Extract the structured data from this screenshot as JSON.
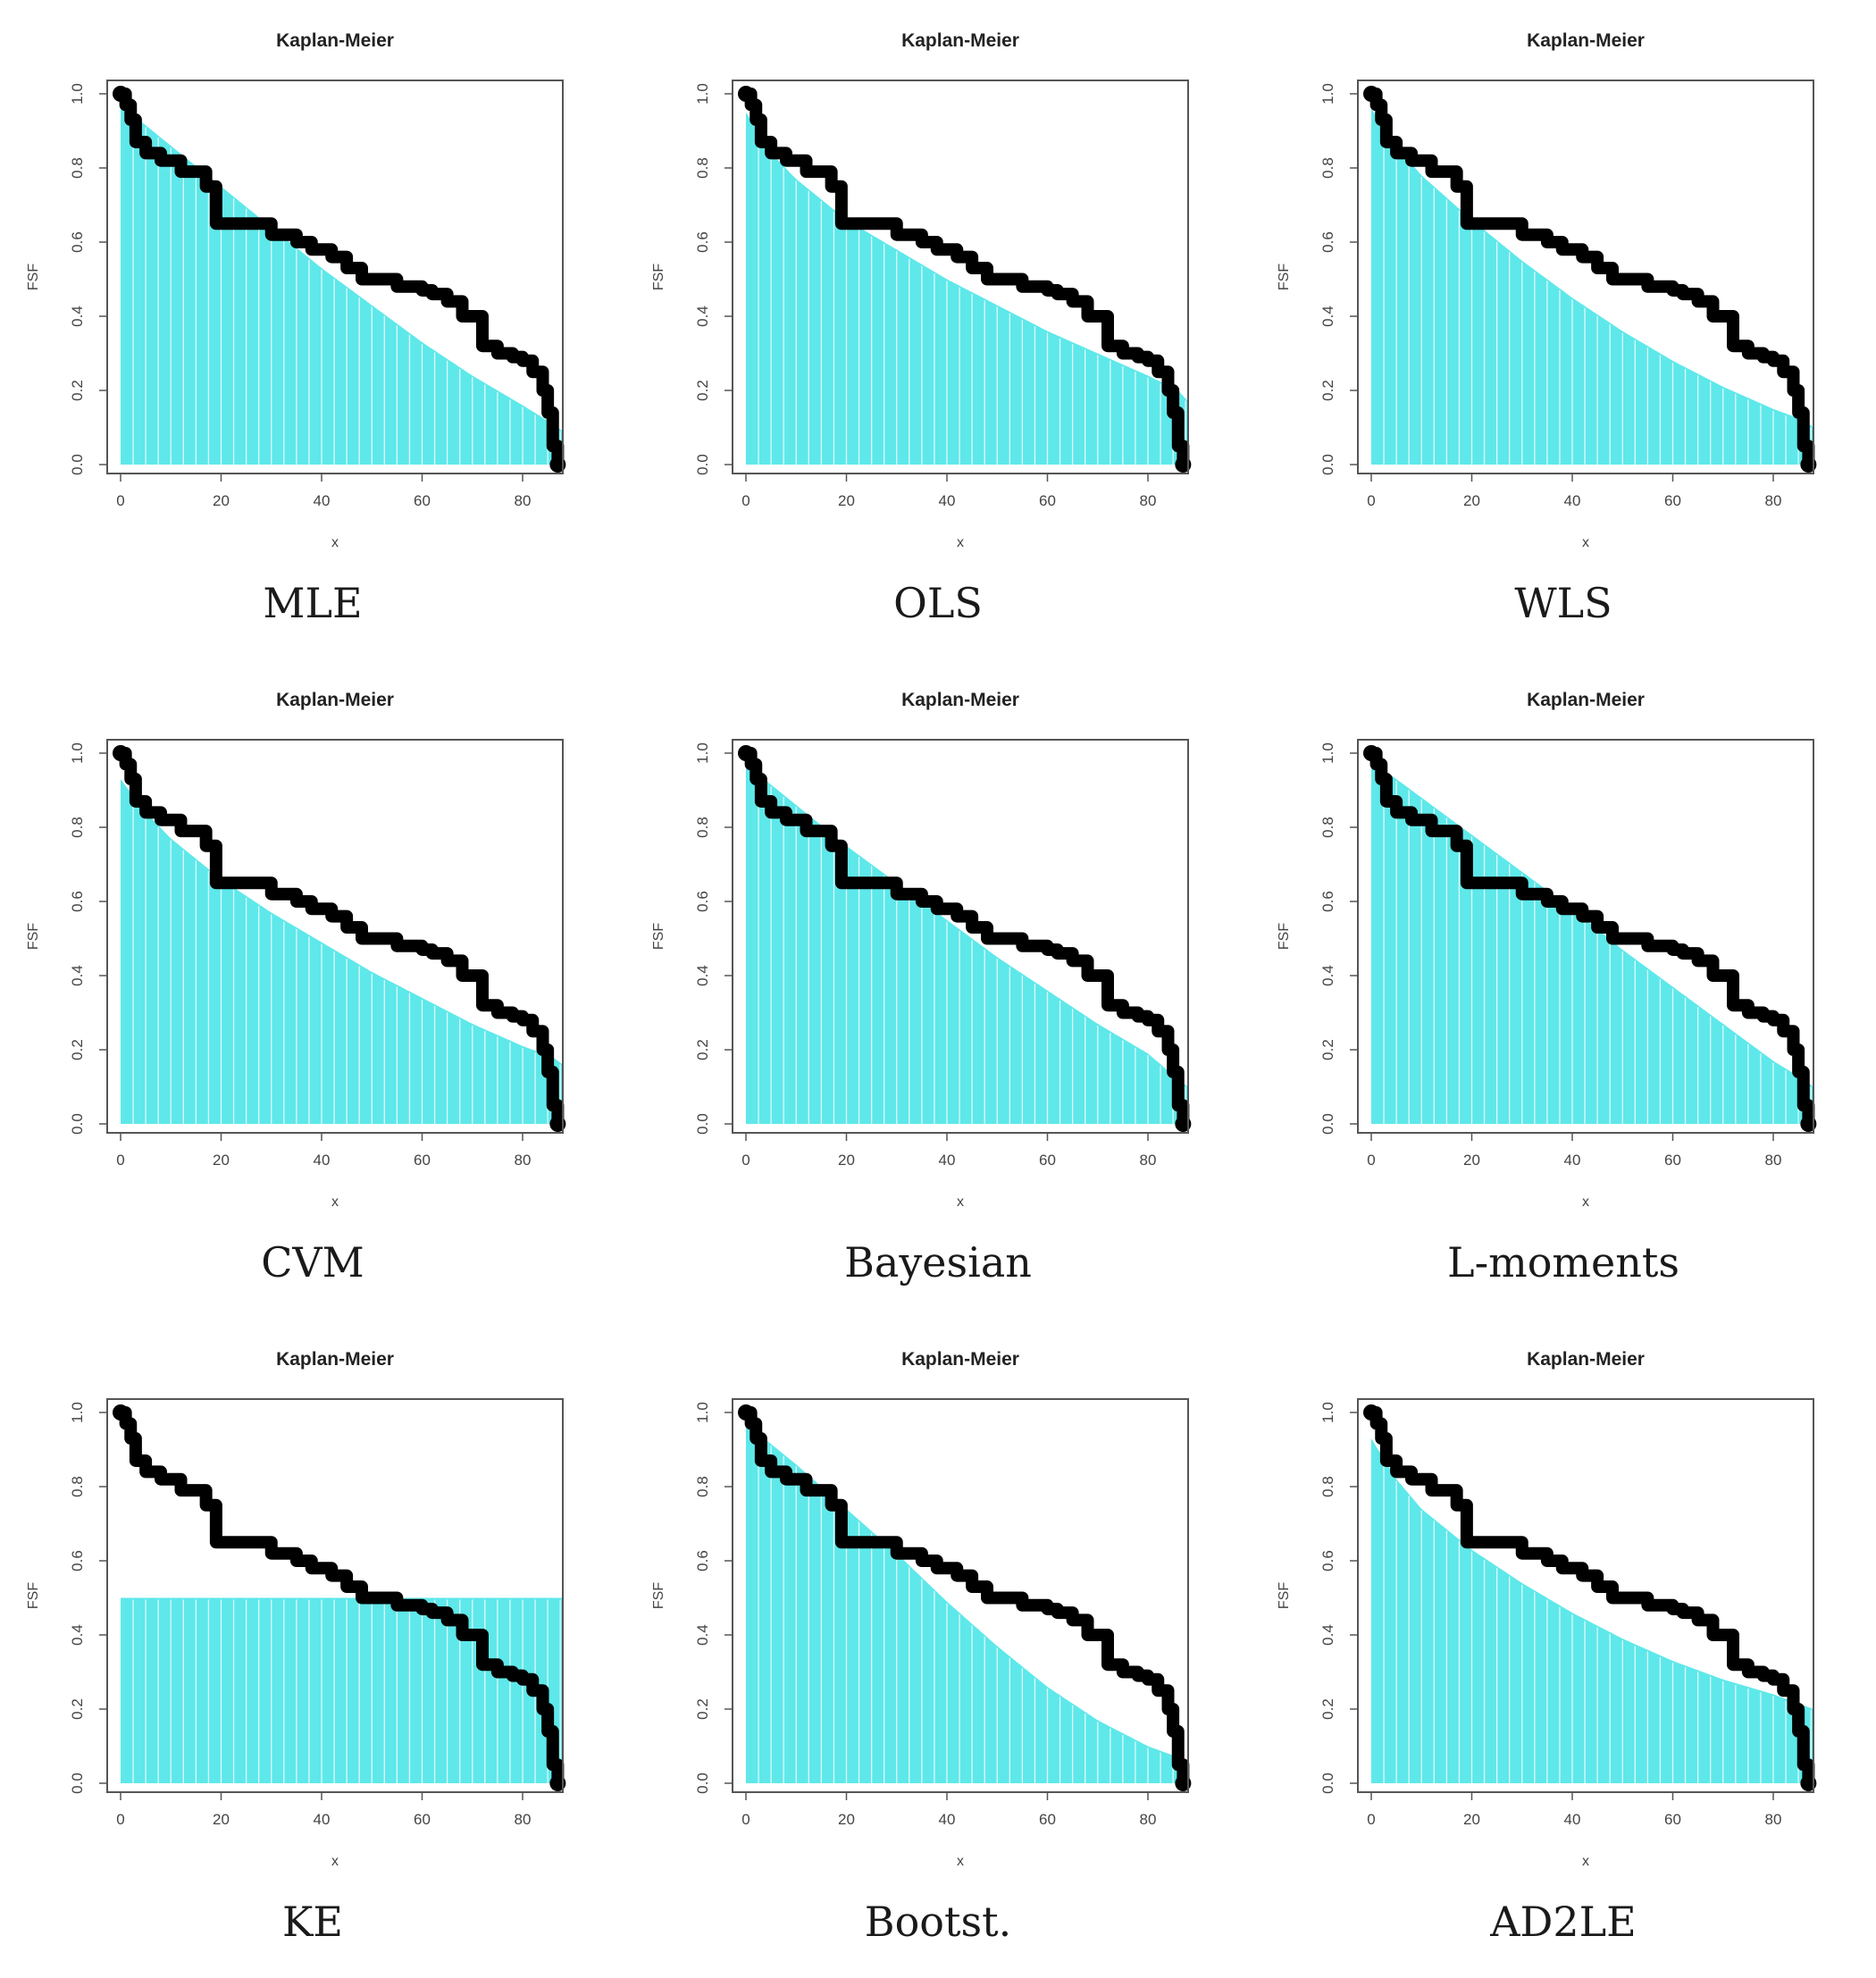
{
  "figure": {
    "panel_title": "Kaplan-Meier",
    "xlabel": "x",
    "ylabel": "FSF",
    "colors": {
      "fitted_fill": "#5ee8ea",
      "fitted_stripe": "#ffffff",
      "km_curve": "#000000",
      "frame": "#555555"
    }
  },
  "chart_data": [
    {
      "type": "area",
      "caption": "MLE",
      "title": "Kaplan-Meier",
      "xlabel": "x",
      "ylabel": "FSF",
      "xlim": [
        0,
        88
      ],
      "ylim": [
        0,
        1
      ],
      "xticks": [
        0,
        20,
        40,
        60,
        80
      ],
      "yticks": [
        0.0,
        0.2,
        0.4,
        0.6,
        0.8,
        1.0
      ],
      "series": [
        {
          "kind": "fitted_survival",
          "x": [
            0,
            10,
            20,
            30,
            40,
            50,
            60,
            70,
            80,
            86,
            88
          ],
          "y": [
            0.97,
            0.86,
            0.75,
            0.64,
            0.53,
            0.43,
            0.33,
            0.24,
            0.16,
            0.11,
            0.09
          ]
        },
        {
          "kind": "kaplan_meier",
          "x": [
            0,
            1,
            2,
            3,
            5,
            8,
            12,
            17,
            19,
            30,
            35,
            38,
            42,
            45,
            48,
            55,
            60,
            62,
            65,
            68,
            72,
            75,
            78,
            80,
            82,
            84,
            85,
            86,
            87
          ],
          "y": [
            1.0,
            0.97,
            0.93,
            0.87,
            0.84,
            0.82,
            0.79,
            0.75,
            0.65,
            0.62,
            0.6,
            0.58,
            0.56,
            0.53,
            0.5,
            0.48,
            0.47,
            0.46,
            0.44,
            0.4,
            0.32,
            0.3,
            0.29,
            0.28,
            0.25,
            0.2,
            0.14,
            0.05,
            0.0
          ]
        }
      ]
    },
    {
      "type": "area",
      "caption": "OLS",
      "title": "Kaplan-Meier",
      "xlabel": "x",
      "ylabel": "FSF",
      "xlim": [
        0,
        88
      ],
      "ylim": [
        0,
        1
      ],
      "xticks": [
        0,
        20,
        40,
        60,
        80
      ],
      "yticks": [
        0.0,
        0.2,
        0.4,
        0.6,
        0.8,
        1.0
      ],
      "series": [
        {
          "kind": "fitted_survival",
          "x": [
            0,
            5,
            10,
            20,
            30,
            40,
            50,
            60,
            70,
            80,
            86,
            88
          ],
          "y": [
            0.95,
            0.84,
            0.77,
            0.66,
            0.58,
            0.5,
            0.43,
            0.36,
            0.3,
            0.24,
            0.2,
            0.17
          ]
        },
        {
          "kind": "kaplan_meier",
          "x": [
            0,
            1,
            2,
            3,
            5,
            8,
            12,
            17,
            19,
            30,
            35,
            38,
            42,
            45,
            48,
            55,
            60,
            62,
            65,
            68,
            72,
            75,
            78,
            80,
            82,
            84,
            85,
            86,
            87
          ],
          "y": [
            1.0,
            0.97,
            0.93,
            0.87,
            0.84,
            0.82,
            0.79,
            0.75,
            0.65,
            0.62,
            0.6,
            0.58,
            0.56,
            0.53,
            0.5,
            0.48,
            0.47,
            0.46,
            0.44,
            0.4,
            0.32,
            0.3,
            0.29,
            0.28,
            0.25,
            0.2,
            0.14,
            0.05,
            0.0
          ]
        }
      ]
    },
    {
      "type": "area",
      "caption": "WLS",
      "title": "Kaplan-Meier",
      "xlabel": "x",
      "ylabel": "FSF",
      "xlim": [
        0,
        88
      ],
      "ylim": [
        0,
        1
      ],
      "xticks": [
        0,
        20,
        40,
        60,
        80
      ],
      "yticks": [
        0.0,
        0.2,
        0.4,
        0.6,
        0.8,
        1.0
      ],
      "series": [
        {
          "kind": "fitted_survival",
          "x": [
            0,
            5,
            10,
            20,
            30,
            40,
            50,
            60,
            70,
            80,
            86,
            88
          ],
          "y": [
            0.96,
            0.86,
            0.78,
            0.66,
            0.55,
            0.45,
            0.36,
            0.28,
            0.21,
            0.15,
            0.12,
            0.1
          ]
        },
        {
          "kind": "kaplan_meier",
          "x": [
            0,
            1,
            2,
            3,
            5,
            8,
            12,
            17,
            19,
            30,
            35,
            38,
            42,
            45,
            48,
            55,
            60,
            62,
            65,
            68,
            72,
            75,
            78,
            80,
            82,
            84,
            85,
            86,
            87
          ],
          "y": [
            1.0,
            0.97,
            0.93,
            0.87,
            0.84,
            0.82,
            0.79,
            0.75,
            0.65,
            0.62,
            0.6,
            0.58,
            0.56,
            0.53,
            0.5,
            0.48,
            0.47,
            0.46,
            0.44,
            0.4,
            0.32,
            0.3,
            0.29,
            0.28,
            0.25,
            0.2,
            0.14,
            0.05,
            0.0
          ]
        }
      ]
    },
    {
      "type": "area",
      "caption": "CVM",
      "title": "Kaplan-Meier",
      "xlabel": "x",
      "ylabel": "FSF",
      "xlim": [
        0,
        88
      ],
      "ylim": [
        0,
        1
      ],
      "xticks": [
        0,
        20,
        40,
        60,
        80
      ],
      "yticks": [
        0.0,
        0.2,
        0.4,
        0.6,
        0.8,
        1.0
      ],
      "series": [
        {
          "kind": "fitted_survival",
          "x": [
            0,
            5,
            10,
            20,
            30,
            40,
            50,
            60,
            70,
            80,
            86,
            88
          ],
          "y": [
            0.93,
            0.84,
            0.77,
            0.66,
            0.57,
            0.49,
            0.41,
            0.34,
            0.27,
            0.21,
            0.18,
            0.16
          ]
        },
        {
          "kind": "kaplan_meier",
          "x": [
            0,
            1,
            2,
            3,
            5,
            8,
            12,
            17,
            19,
            30,
            35,
            38,
            42,
            45,
            48,
            55,
            60,
            62,
            65,
            68,
            72,
            75,
            78,
            80,
            82,
            84,
            85,
            86,
            87
          ],
          "y": [
            1.0,
            0.97,
            0.93,
            0.87,
            0.84,
            0.82,
            0.79,
            0.75,
            0.65,
            0.62,
            0.6,
            0.58,
            0.56,
            0.53,
            0.5,
            0.48,
            0.47,
            0.46,
            0.44,
            0.4,
            0.32,
            0.3,
            0.29,
            0.28,
            0.25,
            0.2,
            0.14,
            0.05,
            0.0
          ]
        }
      ]
    },
    {
      "type": "area",
      "caption": "Bayesian",
      "title": "Kaplan-Meier",
      "xlabel": "x",
      "ylabel": "FSF",
      "xlim": [
        0,
        88
      ],
      "ylim": [
        0,
        1
      ],
      "xticks": [
        0,
        20,
        40,
        60,
        80
      ],
      "yticks": [
        0.0,
        0.2,
        0.4,
        0.6,
        0.8,
        1.0
      ],
      "series": [
        {
          "kind": "fitted_survival",
          "x": [
            0,
            10,
            20,
            30,
            40,
            50,
            60,
            70,
            80,
            86,
            88
          ],
          "y": [
            0.97,
            0.86,
            0.75,
            0.65,
            0.55,
            0.45,
            0.36,
            0.27,
            0.19,
            0.12,
            0.1
          ]
        },
        {
          "kind": "kaplan_meier",
          "x": [
            0,
            1,
            2,
            3,
            5,
            8,
            12,
            17,
            19,
            30,
            35,
            38,
            42,
            45,
            48,
            55,
            60,
            62,
            65,
            68,
            72,
            75,
            78,
            80,
            82,
            84,
            85,
            86,
            87
          ],
          "y": [
            1.0,
            0.97,
            0.93,
            0.87,
            0.84,
            0.82,
            0.79,
            0.75,
            0.65,
            0.62,
            0.6,
            0.58,
            0.56,
            0.53,
            0.5,
            0.48,
            0.47,
            0.46,
            0.44,
            0.4,
            0.32,
            0.3,
            0.29,
            0.28,
            0.25,
            0.2,
            0.14,
            0.05,
            0.0
          ]
        }
      ]
    },
    {
      "type": "area",
      "caption": "L-moments",
      "title": "Kaplan-Meier",
      "xlabel": "x",
      "ylabel": "FSF",
      "xlim": [
        0,
        88
      ],
      "ylim": [
        0,
        1
      ],
      "xticks": [
        0,
        20,
        40,
        60,
        80
      ],
      "yticks": [
        0.0,
        0.2,
        0.4,
        0.6,
        0.8,
        1.0
      ],
      "series": [
        {
          "kind": "fitted_survival",
          "x": [
            0,
            10,
            20,
            30,
            40,
            50,
            60,
            70,
            80,
            86,
            88
          ],
          "y": [
            0.98,
            0.88,
            0.78,
            0.68,
            0.58,
            0.47,
            0.37,
            0.27,
            0.17,
            0.12,
            0.1
          ]
        },
        {
          "kind": "kaplan_meier",
          "x": [
            0,
            1,
            2,
            3,
            5,
            8,
            12,
            17,
            19,
            30,
            35,
            38,
            42,
            45,
            48,
            55,
            60,
            62,
            65,
            68,
            72,
            75,
            78,
            80,
            82,
            84,
            85,
            86,
            87
          ],
          "y": [
            1.0,
            0.97,
            0.93,
            0.87,
            0.84,
            0.82,
            0.79,
            0.75,
            0.65,
            0.62,
            0.6,
            0.58,
            0.56,
            0.53,
            0.5,
            0.48,
            0.47,
            0.46,
            0.44,
            0.4,
            0.32,
            0.3,
            0.29,
            0.28,
            0.25,
            0.2,
            0.14,
            0.05,
            0.0
          ]
        }
      ]
    },
    {
      "type": "area",
      "caption": "KE",
      "title": "Kaplan-Meier",
      "xlabel": "x",
      "ylabel": "FSF",
      "xlim": [
        0,
        88
      ],
      "ylim": [
        0,
        1
      ],
      "xticks": [
        0,
        20,
        40,
        60,
        80
      ],
      "yticks": [
        0.0,
        0.2,
        0.4,
        0.6,
        0.8,
        1.0
      ],
      "series": [
        {
          "kind": "fitted_survival",
          "x": [
            0,
            88
          ],
          "y": [
            0.5,
            0.5
          ]
        },
        {
          "kind": "kaplan_meier",
          "x": [
            0,
            1,
            2,
            3,
            5,
            8,
            12,
            17,
            19,
            30,
            35,
            38,
            42,
            45,
            48,
            55,
            60,
            62,
            65,
            68,
            72,
            75,
            78,
            80,
            82,
            84,
            85,
            86,
            87
          ],
          "y": [
            1.0,
            0.97,
            0.93,
            0.87,
            0.84,
            0.82,
            0.79,
            0.75,
            0.65,
            0.62,
            0.6,
            0.58,
            0.56,
            0.53,
            0.5,
            0.48,
            0.47,
            0.46,
            0.44,
            0.4,
            0.32,
            0.3,
            0.29,
            0.28,
            0.25,
            0.2,
            0.14,
            0.05,
            0.0
          ]
        }
      ]
    },
    {
      "type": "area",
      "caption": "Bootst.",
      "title": "Kaplan-Meier",
      "xlabel": "x",
      "ylabel": "FSF",
      "xlim": [
        0,
        88
      ],
      "ylim": [
        0,
        1
      ],
      "xticks": [
        0,
        20,
        40,
        60,
        80
      ],
      "yticks": [
        0.0,
        0.2,
        0.4,
        0.6,
        0.8,
        1.0
      ],
      "series": [
        {
          "kind": "fitted_survival",
          "x": [
            0,
            10,
            20,
            30,
            40,
            50,
            60,
            70,
            80,
            86,
            88
          ],
          "y": [
            0.97,
            0.86,
            0.74,
            0.62,
            0.49,
            0.37,
            0.26,
            0.17,
            0.1,
            0.07,
            0.05
          ]
        },
        {
          "kind": "kaplan_meier",
          "x": [
            0,
            1,
            2,
            3,
            5,
            8,
            12,
            17,
            19,
            30,
            35,
            38,
            42,
            45,
            48,
            55,
            60,
            62,
            65,
            68,
            72,
            75,
            78,
            80,
            82,
            84,
            85,
            86,
            87
          ],
          "y": [
            1.0,
            0.97,
            0.93,
            0.87,
            0.84,
            0.82,
            0.79,
            0.75,
            0.65,
            0.62,
            0.6,
            0.58,
            0.56,
            0.53,
            0.5,
            0.48,
            0.47,
            0.46,
            0.44,
            0.4,
            0.32,
            0.3,
            0.29,
            0.28,
            0.25,
            0.2,
            0.14,
            0.05,
            0.0
          ]
        }
      ]
    },
    {
      "type": "area",
      "caption": "AD2LE",
      "title": "Kaplan-Meier",
      "xlabel": "x",
      "ylabel": "FSF",
      "xlim": [
        0,
        88
      ],
      "ylim": [
        0,
        1
      ],
      "xticks": [
        0,
        20,
        40,
        60,
        80
      ],
      "yticks": [
        0.0,
        0.2,
        0.4,
        0.6,
        0.8,
        1.0
      ],
      "series": [
        {
          "kind": "fitted_survival",
          "x": [
            0,
            5,
            10,
            20,
            30,
            40,
            50,
            60,
            70,
            80,
            86,
            88
          ],
          "y": [
            0.93,
            0.82,
            0.74,
            0.63,
            0.54,
            0.46,
            0.39,
            0.33,
            0.28,
            0.24,
            0.21,
            0.2
          ]
        },
        {
          "kind": "kaplan_meier",
          "x": [
            0,
            1,
            2,
            3,
            5,
            8,
            12,
            17,
            19,
            30,
            35,
            38,
            42,
            45,
            48,
            55,
            60,
            62,
            65,
            68,
            72,
            75,
            78,
            80,
            82,
            84,
            85,
            86,
            87
          ],
          "y": [
            1.0,
            0.97,
            0.93,
            0.87,
            0.84,
            0.82,
            0.79,
            0.75,
            0.65,
            0.62,
            0.6,
            0.58,
            0.56,
            0.53,
            0.5,
            0.48,
            0.47,
            0.46,
            0.44,
            0.4,
            0.32,
            0.3,
            0.29,
            0.28,
            0.25,
            0.2,
            0.14,
            0.05,
            0.0
          ]
        }
      ]
    }
  ]
}
